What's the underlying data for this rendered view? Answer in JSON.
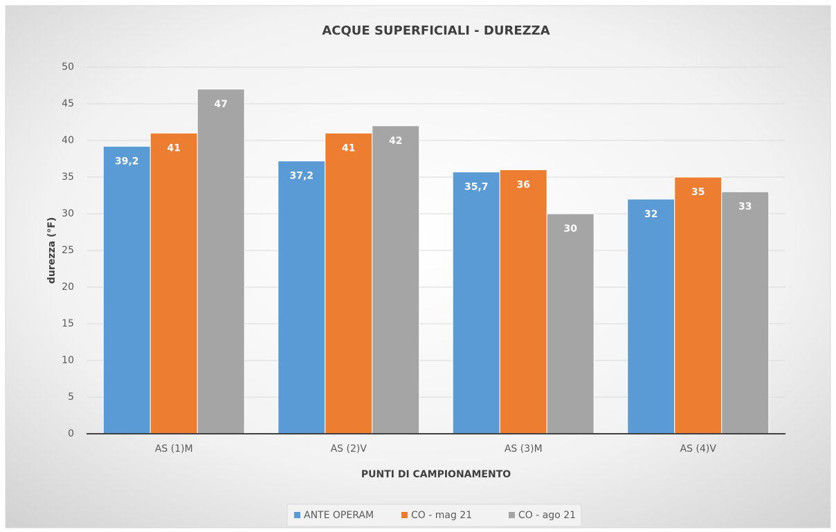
{
  "chart_data": {
    "type": "bar",
    "title": "ACQUE SUPERFICIALI - DUREZZA",
    "x_label": "PUNTI DI CAMPIONAMENTO",
    "y_label": "durezza (°F)",
    "categories": [
      "AS (1)M",
      "AS (2)V",
      "AS (3)M",
      "AS (4)V"
    ],
    "series": [
      {
        "name": "ANTE OPERAM",
        "color": "#5b9bd5",
        "values": [
          39.2,
          37.2,
          35.7,
          32
        ],
        "value_labels": [
          "39,2",
          "37,2",
          "35,7",
          "32"
        ]
      },
      {
        "name": "CO - mag 21",
        "color": "#ed7d31",
        "values": [
          41,
          41,
          36,
          35
        ]
      },
      {
        "name": "CO - ago 21",
        "color": "#a5a5a5",
        "values": [
          47,
          42,
          30,
          33
        ]
      }
    ],
    "ylim": [
      0,
      50
    ],
    "yticks": [
      0,
      5,
      10,
      15,
      20,
      25,
      30,
      35,
      40,
      45,
      50
    ],
    "grid": true,
    "legend": "bottom"
  }
}
